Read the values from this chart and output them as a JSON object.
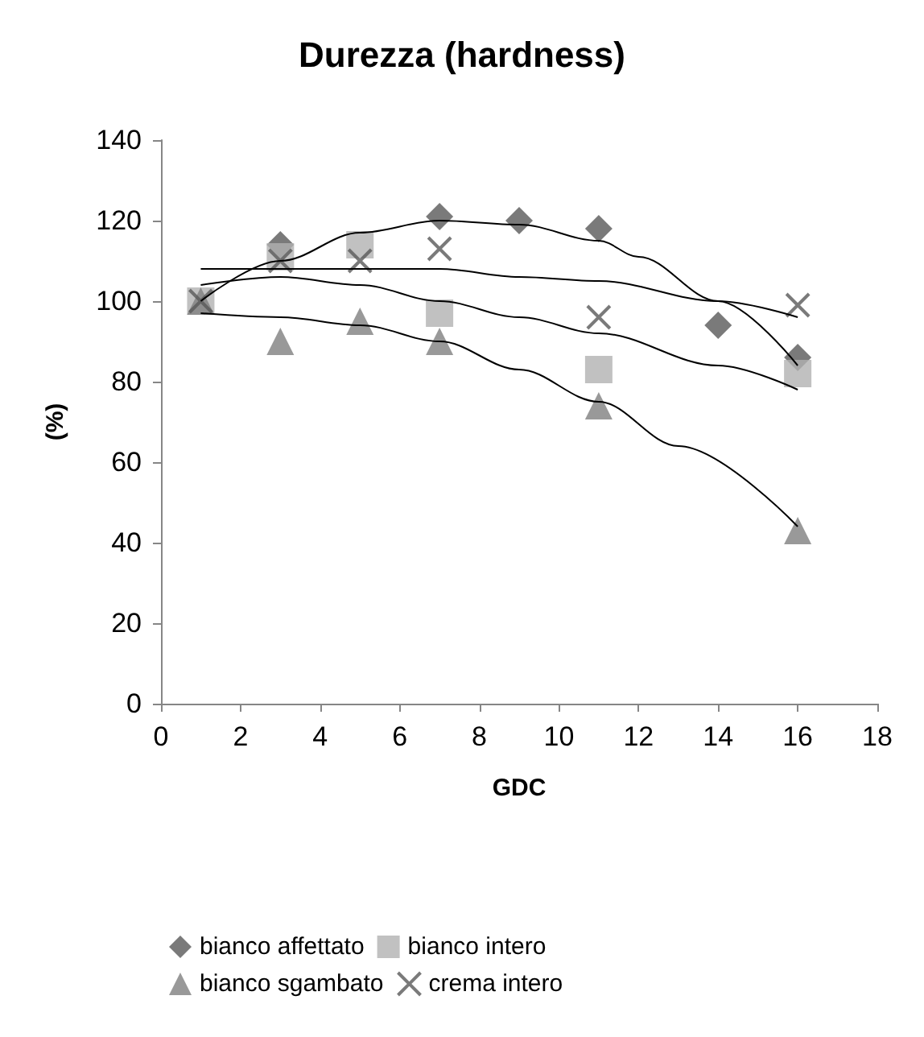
{
  "chart_data": {
    "type": "scatter",
    "title": "Durezza (hardness)",
    "xlabel": "GDC",
    "ylabel": "(%)",
    "xlim": [
      0,
      18
    ],
    "xticks": [
      0,
      2,
      4,
      6,
      8,
      10,
      12,
      14,
      16,
      18
    ],
    "ylim": [
      0,
      140
    ],
    "yticks": [
      0,
      20,
      40,
      60,
      80,
      100,
      120,
      140
    ],
    "grid": false,
    "legend": "bottom",
    "series": [
      {
        "name": "bianco affettato",
        "color": "#595959",
        "marker": "diamond",
        "x": [
          3,
          7,
          9,
          11,
          14,
          16
        ],
        "values": [
          114,
          121,
          120,
          118,
          94,
          86
        ]
      },
      {
        "name": "bianco intero",
        "color": "#b2b2b2",
        "marker": "square",
        "x": [
          1,
          3,
          5,
          7,
          11,
          16
        ],
        "values": [
          100,
          111,
          114,
          97,
          83,
          82
        ]
      },
      {
        "name": "bianco sgambato",
        "color": "#7f7f7f",
        "marker": "triangle",
        "x": [
          1,
          3,
          5,
          7,
          11,
          16
        ],
        "values": [
          100,
          90,
          95,
          90,
          74,
          43
        ]
      },
      {
        "name": "crema intero",
        "color": "#595959",
        "marker": "cross",
        "x": [
          1,
          3,
          5,
          7,
          11,
          16
        ],
        "values": [
          100,
          110,
          110,
          113,
          96,
          99
        ]
      },
      {
        "type": "line",
        "color": "#000000",
        "marker": "none",
        "x": [
          1,
          3,
          5,
          7,
          9,
          11,
          12,
          14,
          16
        ],
        "values": [
          100,
          110,
          117,
          120,
          119,
          115,
          111,
          100,
          84
        ]
      },
      {
        "type": "line",
        "color": "#000000",
        "marker": "none",
        "x": [
          1,
          3,
          5,
          7,
          9,
          11,
          14,
          16
        ],
        "values": [
          104,
          106,
          104,
          100,
          96,
          92,
          84,
          78
        ]
      },
      {
        "type": "line",
        "color": "#000000",
        "marker": "none",
        "x": [
          1,
          3,
          5,
          7,
          9,
          11,
          13,
          16
        ],
        "values": [
          97,
          96,
          94,
          90,
          83,
          75,
          64,
          44
        ]
      },
      {
        "type": "line",
        "color": "#000000",
        "marker": "none",
        "x": [
          1,
          3,
          5,
          7,
          9,
          11,
          14,
          16
        ],
        "values": [
          108,
          108,
          108,
          108,
          106,
          105,
          100,
          96
        ]
      }
    ]
  }
}
